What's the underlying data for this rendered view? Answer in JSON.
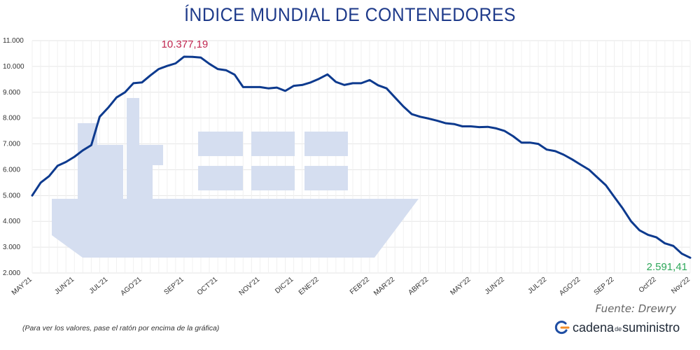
{
  "title": "ÍNDICE MUNDIAL DE CONTENEDORES",
  "source": "Fuente: Drewry",
  "note": "(Para ver los valores, pase el ratón por encima de la gráfica)",
  "logo": {
    "part1": "cadena",
    "part2": "de",
    "part3": "suministro"
  },
  "colors": {
    "line": "#0d3a8e",
    "ship": "#d5def0",
    "max_label": "#c0264f",
    "last_label": "#2ea85a",
    "title": "#1e3a8a"
  },
  "chart_data": {
    "type": "line",
    "title": "ÍNDICE MUNDIAL DE CONTENEDORES",
    "xlabel": "",
    "ylabel": "",
    "ylim": [
      2000,
      11000
    ],
    "yticks": [
      "2.000",
      "3.000",
      "4.000",
      "5.000",
      "6.000",
      "7.000",
      "8.000",
      "9.000",
      "10.000",
      "11.000"
    ],
    "ytick_values": [
      2000,
      3000,
      4000,
      5000,
      6000,
      7000,
      8000,
      9000,
      10000,
      11000
    ],
    "grid": true,
    "x_tick_labels": [
      {
        "i": 0,
        "label": "MAY'21"
      },
      {
        "i": 5,
        "label": "JUN'21"
      },
      {
        "i": 9,
        "label": "JUL'21"
      },
      {
        "i": 13,
        "label": "AGO'21"
      },
      {
        "i": 18,
        "label": "SEP'21"
      },
      {
        "i": 22,
        "label": "OCT'21"
      },
      {
        "i": 27,
        "label": "NOV'21"
      },
      {
        "i": 31,
        "label": "DIC'21"
      },
      {
        "i": 34,
        "label": "ENE'22"
      },
      {
        "i": 40,
        "label": "FEB'22"
      },
      {
        "i": 43,
        "label": "MAR'22"
      },
      {
        "i": 47,
        "label": "ABR'22"
      },
      {
        "i": 52,
        "label": "MAY'22"
      },
      {
        "i": 56,
        "label": "JUN'22"
      },
      {
        "i": 61,
        "label": "JUL'22"
      },
      {
        "i": 65,
        "label": "AGO'22"
      },
      {
        "i": 69,
        "label": "SEP 22"
      },
      {
        "i": 74,
        "label": "Oct'22"
      },
      {
        "i": 78,
        "label": "Nov'22"
      }
    ],
    "series": [
      {
        "values": [
          5000,
          5500,
          5750,
          6150,
          6300,
          6500,
          6750,
          6950,
          8050,
          8400,
          8800,
          9000,
          9350,
          9380,
          9650,
          9900,
          10020,
          10120,
          10377.19,
          10370,
          10340,
          10100,
          9900,
          9850,
          9680,
          9200,
          9200,
          9200,
          9150,
          9180,
          9050,
          9250,
          9280,
          9380,
          9520,
          9690,
          9400,
          9280,
          9350,
          9350,
          9470,
          9270,
          9150,
          8800,
          8450,
          8150,
          8050,
          7980,
          7900,
          7800,
          7770,
          7680,
          7680,
          7650,
          7660,
          7600,
          7500,
          7300,
          7050,
          7050,
          7000,
          6780,
          6720,
          6580,
          6400,
          6200,
          6000,
          5700,
          5400,
          4950,
          4500,
          4000,
          3650,
          3480,
          3380,
          3150,
          3050,
          2750,
          2591.41
        ]
      }
    ],
    "annotations": [
      {
        "i": 18,
        "text": "10.377,19",
        "color": "#c0264f"
      },
      {
        "i": 78,
        "text": "2.591,41",
        "color": "#2ea85a"
      }
    ]
  }
}
